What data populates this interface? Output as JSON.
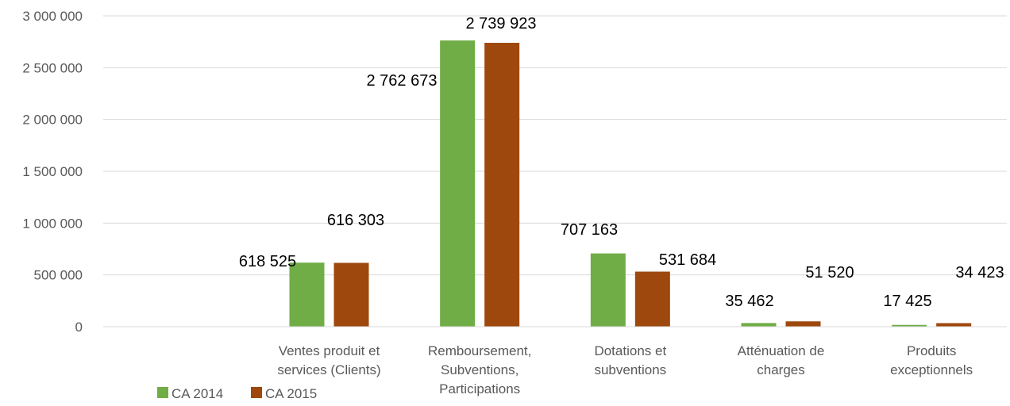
{
  "chart_data": {
    "type": "bar",
    "categories": [
      "",
      [
        "Ventes produit et",
        "services (Clients)"
      ],
      [
        "Remboursement,",
        "Subventions,",
        "Participations"
      ],
      [
        "Dotations et",
        "subventions"
      ],
      [
        "Atténuation de",
        "charges"
      ],
      [
        "Produits",
        "exceptionnels"
      ]
    ],
    "series": [
      {
        "name": "CA 2014",
        "color": "#70ad47",
        "values": [
          null,
          618525,
          2762673,
          707163,
          35462,
          17425
        ],
        "labels": [
          "",
          "618 525",
          "2 762 673",
          "707 163",
          "35 462",
          "17 425"
        ]
      },
      {
        "name": "CA 2015",
        "color": "#9e480e",
        "values": [
          null,
          616303,
          2739923,
          531684,
          51520,
          34423
        ],
        "labels": [
          "",
          "616 303",
          "2 739 923",
          "531 684",
          "51 520",
          "34 423"
        ]
      }
    ],
    "yticks": [
      "0",
      "500 000",
      "1 000 000",
      "1 500 000",
      "2 000 000",
      "2 500 000",
      "3 000 000"
    ],
    "ylim": [
      0,
      3000000
    ],
    "grid": true,
    "legend": "bottom-left",
    "title": "",
    "xlabel": "",
    "ylabel": ""
  }
}
